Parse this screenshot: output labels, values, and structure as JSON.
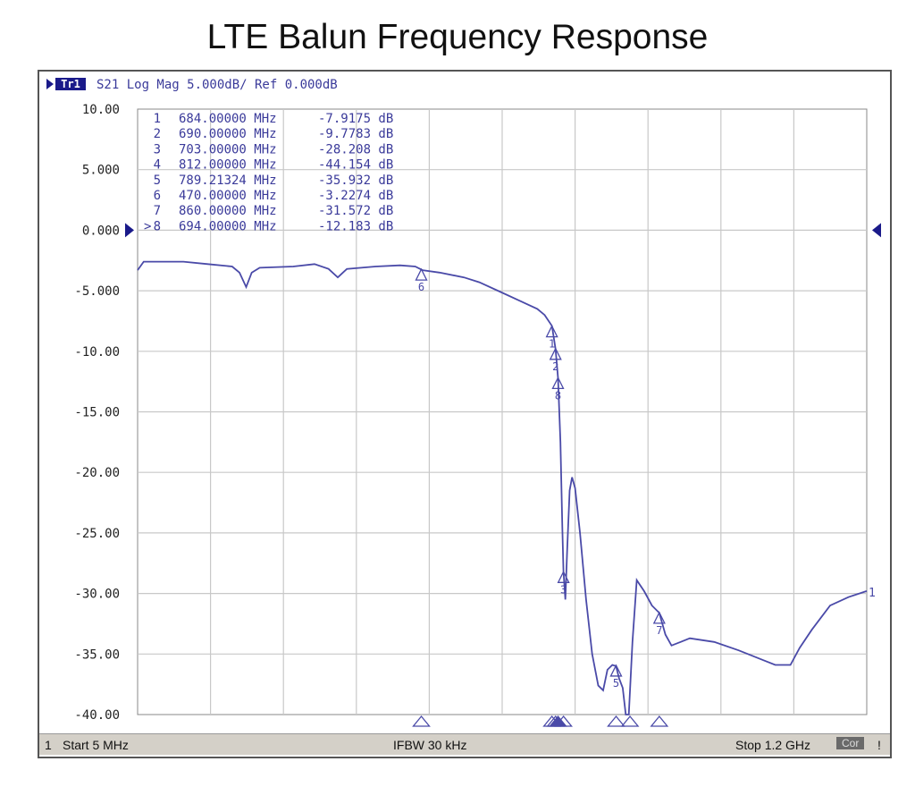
{
  "page_title": "LTE Balun Frequency Response",
  "header": {
    "trace_tag": "Tr1",
    "trace_info": "S21 Log Mag 5.000dB/ Ref 0.000dB"
  },
  "status_bar": {
    "channel": "1",
    "start": "Start 5 MHz",
    "ifbw": "IFBW 30 kHz",
    "stop": "Stop 1.2 GHz",
    "cor_tag": "Cor",
    "excl": "!"
  },
  "colors": {
    "trace": "#4a4aa8",
    "grid": "#c8c8c8",
    "text": "#3a3a9a",
    "axis_text": "#222222",
    "marker_outline": "#4a4aa8"
  },
  "chart_data": {
    "type": "line",
    "title": "LTE Balun Frequency Response",
    "xlabel": "",
    "ylabel": "",
    "xlim": [
      5,
      1200
    ],
    "ylim": [
      -40,
      10
    ],
    "x_unit": "MHz",
    "y_unit": "dB",
    "x_divisions": 10,
    "y_tick_labels": [
      "10.00",
      "5.000",
      "0.000",
      "-5.000",
      "-10.00",
      "-15.00",
      "-20.00",
      "-25.00",
      "-30.00",
      "-35.00",
      "-40.00"
    ],
    "reference_level": 0,
    "grid": true,
    "series": [
      {
        "points": [
          [
            5,
            -3.3
          ],
          [
            15,
            -2.6
          ],
          [
            80,
            -2.6
          ],
          [
            120,
            -2.8
          ],
          [
            160,
            -3.0
          ],
          [
            172,
            -3.5
          ],
          [
            183,
            -4.7
          ],
          [
            192,
            -3.5
          ],
          [
            205,
            -3.1
          ],
          [
            260,
            -3.0
          ],
          [
            295,
            -2.8
          ],
          [
            318,
            -3.2
          ],
          [
            333,
            -3.9
          ],
          [
            348,
            -3.2
          ],
          [
            395,
            -3.0
          ],
          [
            435,
            -2.9
          ],
          [
            460,
            -3.0
          ],
          [
            472,
            -3.3
          ],
          [
            500,
            -3.5
          ],
          [
            540,
            -3.9
          ],
          [
            565,
            -4.3
          ],
          [
            600,
            -5.1
          ],
          [
            630,
            -5.8
          ],
          [
            660,
            -6.5
          ],
          [
            672,
            -7.0
          ],
          [
            684,
            -7.9
          ],
          [
            690,
            -9.8
          ],
          [
            694,
            -12.2
          ],
          [
            698,
            -17.5
          ],
          [
            701,
            -24.5
          ],
          [
            703,
            -28.2
          ],
          [
            706,
            -30.5
          ],
          [
            709,
            -26.5
          ],
          [
            713,
            -21.5
          ],
          [
            717,
            -20.4
          ],
          [
            722,
            -21.3
          ],
          [
            730,
            -25.0
          ],
          [
            740,
            -30.5
          ],
          [
            750,
            -35.0
          ],
          [
            760,
            -37.6
          ],
          [
            768,
            -38.0
          ],
          [
            775,
            -36.3
          ],
          [
            783,
            -35.9
          ],
          [
            789,
            -36.0
          ],
          [
            794,
            -37.0
          ],
          [
            800,
            -37.8
          ],
          [
            805,
            -40.0
          ],
          [
            810,
            -40.0
          ],
          [
            816,
            -34.0
          ],
          [
            823,
            -28.9
          ],
          [
            835,
            -29.8
          ],
          [
            848,
            -31.0
          ],
          [
            860,
            -31.6
          ],
          [
            870,
            -33.4
          ],
          [
            880,
            -34.3
          ],
          [
            895,
            -34.0
          ],
          [
            910,
            -33.7
          ],
          [
            950,
            -34.0
          ],
          [
            990,
            -34.7
          ],
          [
            1030,
            -35.5
          ],
          [
            1050,
            -35.9
          ],
          [
            1075,
            -35.9
          ],
          [
            1090,
            -34.5
          ],
          [
            1110,
            -33.0
          ],
          [
            1140,
            -31.0
          ],
          [
            1170,
            -30.3
          ],
          [
            1200,
            -29.8
          ]
        ]
      }
    ],
    "markers": [
      {
        "id": "1",
        "freq_mhz": 684.0,
        "readout": "684.00000 MHz",
        "value_db": -7.9175,
        "value_text": "-7.9175 dB"
      },
      {
        "id": "2",
        "freq_mhz": 690.0,
        "readout": "690.00000 MHz",
        "value_db": -9.7783,
        "value_text": "-9.7783 dB"
      },
      {
        "id": "3",
        "freq_mhz": 703.0,
        "readout": "703.00000 MHz",
        "value_db": -28.208,
        "value_text": "-28.208 dB"
      },
      {
        "id": "4",
        "freq_mhz": 812.0,
        "readout": "812.00000 MHz",
        "value_db": -44.154,
        "value_text": "-44.154 dB"
      },
      {
        "id": "5",
        "freq_mhz": 789.21324,
        "readout": "789.21324 MHz",
        "value_db": -35.932,
        "value_text": "-35.932 dB"
      },
      {
        "id": "6",
        "freq_mhz": 470.0,
        "readout": "470.00000 MHz",
        "value_db": -3.2274,
        "value_text": "-3.2274 dB"
      },
      {
        "id": "7",
        "freq_mhz": 860.0,
        "readout": "860.00000 MHz",
        "value_db": -31.572,
        "value_text": "-31.572 dB"
      },
      {
        "id": "8",
        "active": true,
        "freq_mhz": 694.0,
        "readout": "694.00000 MHz",
        "value_db": -12.183,
        "value_text": "-12.183 dB"
      }
    ],
    "end_label": "1"
  }
}
